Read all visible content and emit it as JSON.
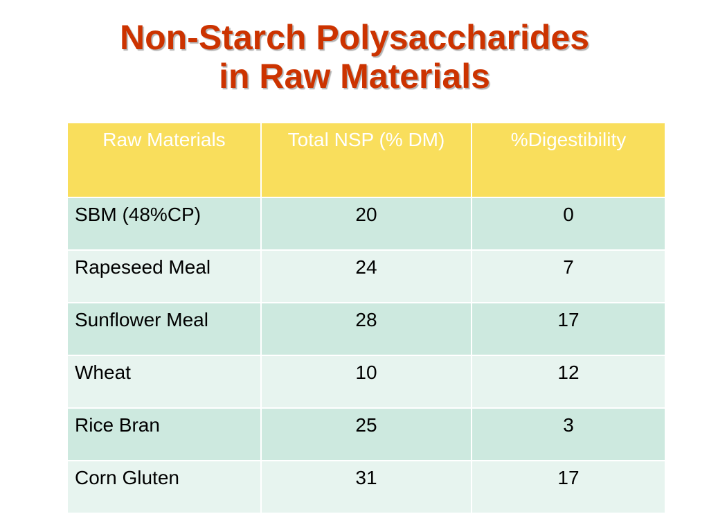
{
  "slide": {
    "title_line1": "Non-Starch Polysaccharides",
    "title_line2": "in Raw Materials"
  },
  "table": {
    "headers": [
      "Raw Materials",
      "Total NSP (% DM)",
      "%Digestibility"
    ],
    "rows": [
      {
        "material": "SBM (48%CP)",
        "total_nsp": "20",
        "digestibility": "0"
      },
      {
        "material": "Rapeseed Meal",
        "total_nsp": "24",
        "digestibility": "7"
      },
      {
        "material": "Sunflower Meal",
        "total_nsp": "28",
        "digestibility": "17"
      },
      {
        "material": "Wheat",
        "total_nsp": "10",
        "digestibility": "12"
      },
      {
        "material": "Rice Bran",
        "total_nsp": "25",
        "digestibility": "3"
      },
      {
        "material": "Corn Gluten",
        "total_nsp": "31",
        "digestibility": "17"
      }
    ]
  },
  "colors": {
    "title": "#cc3300",
    "header_bg": "#f9de5c",
    "row_dark": "#cde9df",
    "row_light": "#e7f4ef"
  }
}
